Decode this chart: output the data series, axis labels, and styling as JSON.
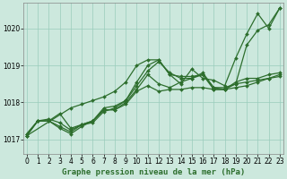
{
  "background_color": "#cce8dd",
  "grid_color": "#99ccbb",
  "line_color": "#2d6e2d",
  "title": "Graphe pression niveau de la mer (hPa)",
  "ylim": [
    1016.6,
    1020.7
  ],
  "yticks": [
    1017,
    1018,
    1019,
    1020
  ],
  "xticks": [
    0,
    1,
    2,
    3,
    4,
    5,
    6,
    7,
    8,
    9,
    10,
    11,
    12,
    13,
    14,
    15,
    16,
    17,
    18,
    19,
    20,
    21,
    22,
    23
  ],
  "series": [
    {
      "x": [
        0,
        1,
        2,
        3,
        4,
        5,
        6,
        7,
        8,
        9,
        10,
        11,
        12,
        13,
        14,
        15,
        16,
        17,
        18,
        19,
        20,
        21,
        22,
        23
      ],
      "y": [
        1017.1,
        1017.5,
        1017.5,
        1017.7,
        1017.3,
        1017.4,
        1017.45,
        1017.75,
        1017.85,
        1018.05,
        1018.55,
        1019.0,
        1019.15,
        1018.75,
        1018.7,
        1018.7,
        1018.75,
        1018.35,
        1018.35,
        1018.5,
        1019.55,
        1019.95,
        1020.1,
        1020.55
      ]
    },
    {
      "x": [
        0,
        1,
        2,
        3,
        4,
        5,
        6,
        7,
        8,
        9,
        10,
        11,
        12,
        13,
        14,
        15,
        16,
        17,
        18,
        19,
        20,
        21,
        22,
        23
      ],
      "y": [
        1017.15,
        1017.5,
        1017.55,
        1017.45,
        1017.25,
        1017.4,
        1017.5,
        1017.85,
        1017.9,
        1018.05,
        1018.45,
        1018.85,
        1019.1,
        1018.8,
        1018.65,
        1018.65,
        1018.8,
        1018.4,
        1018.35,
        1018.55,
        1018.65,
        1018.65,
        1018.75,
        1018.8
      ]
    },
    {
      "x": [
        0,
        1,
        2,
        3,
        4,
        5,
        6,
        7,
        8,
        9,
        10,
        11,
        12,
        13,
        14,
        15,
        16,
        17,
        18,
        19,
        20,
        21,
        22,
        23
      ],
      "y": [
        1017.1,
        1017.5,
        1017.5,
        1017.3,
        1017.15,
        1017.35,
        1017.5,
        1017.8,
        1017.8,
        1017.95,
        1018.3,
        1018.45,
        1018.3,
        1018.35,
        1018.35,
        1018.4,
        1018.4,
        1018.35,
        1018.35,
        1018.4,
        1018.45,
        1018.55,
        1018.65,
        1018.7
      ]
    },
    {
      "x": [
        0,
        1,
        2,
        3,
        4,
        5,
        6,
        7,
        8,
        9,
        10,
        11,
        12,
        13,
        14,
        15,
        16,
        17,
        18,
        19,
        20,
        21,
        22,
        23
      ],
      "y": [
        1017.15,
        1017.5,
        1017.5,
        1017.35,
        1017.2,
        1017.4,
        1017.5,
        1017.8,
        1017.8,
        1018.0,
        1018.35,
        1018.75,
        1018.5,
        1018.4,
        1018.55,
        1018.65,
        1018.75,
        1018.4,
        1018.4,
        1018.5,
        1018.55,
        1018.6,
        1018.65,
        1018.75
      ]
    },
    {
      "x": [
        0,
        4,
        5,
        6,
        7,
        8,
        9,
        10,
        11,
        12,
        13,
        14,
        15,
        16,
        17,
        18,
        19,
        20,
        21,
        22,
        23
      ],
      "y": [
        1017.1,
        1017.85,
        1017.95,
        1018.05,
        1018.15,
        1018.3,
        1018.55,
        1019.0,
        1019.15,
        1019.15,
        1018.75,
        1018.5,
        1018.9,
        1018.65,
        1018.6,
        1018.45,
        1019.2,
        1019.85,
        1020.4,
        1020.0,
        1020.55
      ]
    }
  ],
  "marker": "D",
  "markersize": 2.0,
  "linewidth": 0.9,
  "tick_fontsize": 5.5,
  "label_fontsize": 6.5
}
